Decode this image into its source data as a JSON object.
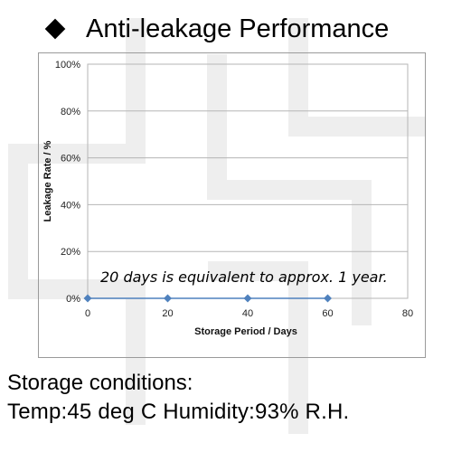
{
  "header": {
    "bullet_icon": "diamond-icon",
    "title": "Anti-leakage Performance"
  },
  "chart_data": {
    "type": "line",
    "title": "",
    "xlabel": "Storage Period / Days",
    "ylabel": "Leakage Rate / %",
    "x_ticks": [
      "0",
      "20",
      "40",
      "60",
      "80"
    ],
    "y_ticks": [
      "0%",
      "20%",
      "40%",
      "60%",
      "80%",
      "100%"
    ],
    "xlim": [
      0,
      80
    ],
    "ylim": [
      0,
      100
    ],
    "grid": true,
    "series": [
      {
        "x": [
          0,
          20,
          40,
          60
        ],
        "y": [
          0,
          0,
          0,
          0
        ],
        "color": "#4f81bd",
        "marker": "diamond"
      }
    ],
    "annotation": "20 days is equivalent to approx. 1 year."
  },
  "conditions": {
    "heading": "Storage conditions:",
    "details": "Temp:45 deg C  Humidity:93%  R.H."
  }
}
